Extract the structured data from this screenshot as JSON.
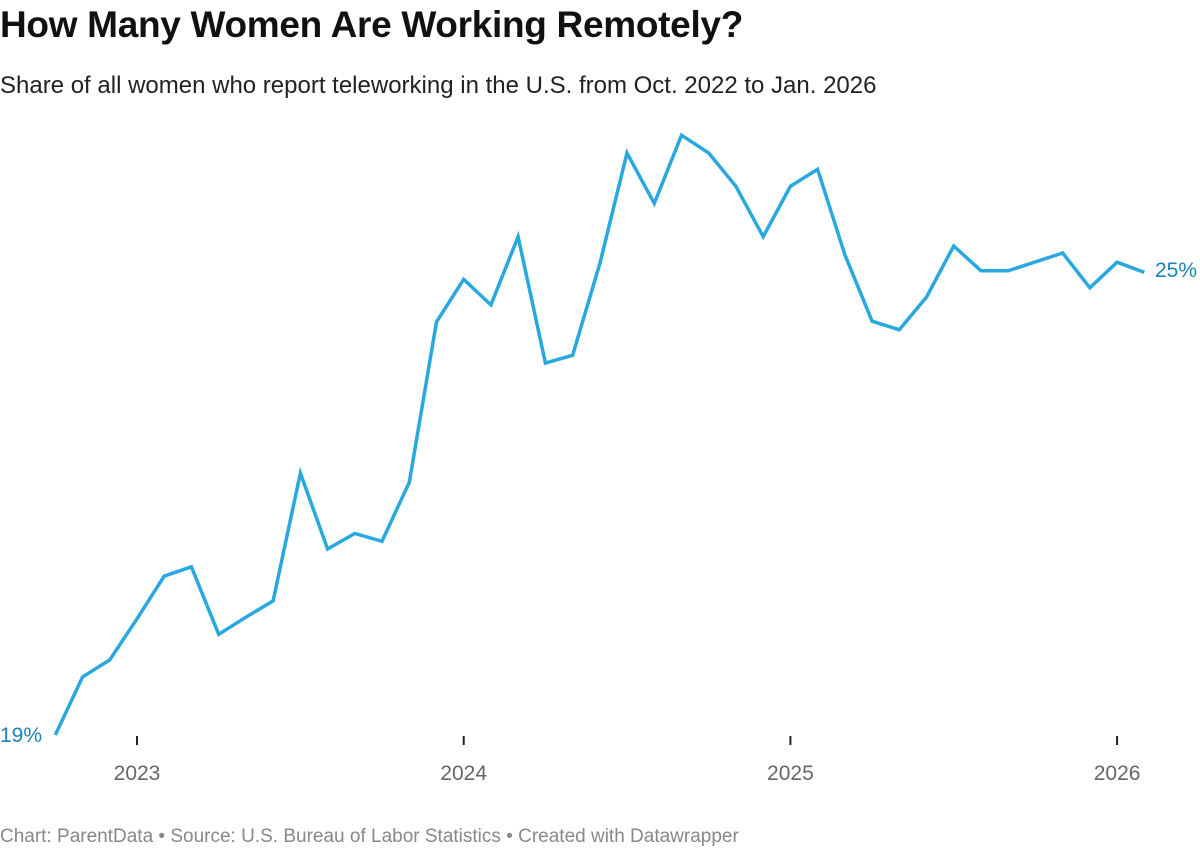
{
  "chart_data": {
    "type": "line",
    "title": "How Many Women Are Working Remotely?",
    "subtitle": "Share of all women who report teleworking in the U.S. from Oct. 2022 to Jan. 2026",
    "xlabel": "",
    "ylabel": "",
    "x_ticks": [
      "2023",
      "2024",
      "2025",
      "2026"
    ],
    "grid": false,
    "line_color": "#29a8e0",
    "label_color": "#1a82b8",
    "start_label": "19%",
    "end_label": "25%",
    "ylim": [
      19,
      26.9
    ],
    "series": [
      {
        "x": [
          "2022-10",
          "2022-11",
          "2022-12",
          "2023-01",
          "2023-02",
          "2023-03",
          "2023-04",
          "2023-05",
          "2023-06",
          "2023-07",
          "2023-08",
          "2023-09",
          "2023-10",
          "2023-11",
          "2023-12",
          "2024-01",
          "2024-02",
          "2024-03",
          "2024-04",
          "2024-05",
          "2024-06",
          "2024-07",
          "2024-08",
          "2024-09",
          "2024-10",
          "2024-11",
          "2024-12",
          "2025-01",
          "2025-02",
          "2025-03",
          "2025-04",
          "2025-05",
          "2025-06",
          "2025-07",
          "2025-08",
          "2025-09",
          "2025-11",
          "2025-12",
          "2026-01",
          "2026-02"
        ],
        "values": [
          19.0,
          19.75,
          19.97,
          20.5,
          21.05,
          21.17,
          20.3,
          20.52,
          20.73,
          22.38,
          21.4,
          21.6,
          21.5,
          22.26,
          24.33,
          24.88,
          24.55,
          25.43,
          23.8,
          23.9,
          25.08,
          26.51,
          25.86,
          26.74,
          26.51,
          26.08,
          25.43,
          26.08,
          26.3,
          25.2,
          24.34,
          24.23,
          24.65,
          25.31,
          24.99,
          24.99,
          25.22,
          24.77,
          25.1,
          24.97
        ]
      }
    ]
  },
  "footer": "Chart: ParentData • Source: U.S. Bureau of Labor Statistics • Created with Datawrapper"
}
